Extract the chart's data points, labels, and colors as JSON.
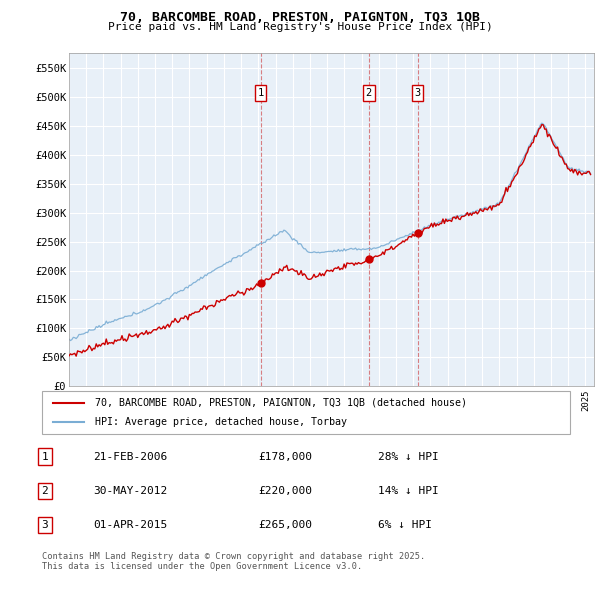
{
  "title_line1": "70, BARCOMBE ROAD, PRESTON, PAIGNTON, TQ3 1QB",
  "title_line2": "Price paid vs. HM Land Registry's House Price Index (HPI)",
  "xlim_start": 1995.0,
  "xlim_end": 2025.5,
  "ylim_min": 0,
  "ylim_max": 575000,
  "yticks": [
    0,
    50000,
    100000,
    150000,
    200000,
    250000,
    300000,
    350000,
    400000,
    450000,
    500000,
    550000
  ],
  "ytick_labels": [
    "£0",
    "£50K",
    "£100K",
    "£150K",
    "£200K",
    "£250K",
    "£300K",
    "£350K",
    "£400K",
    "£450K",
    "£500K",
    "£550K"
  ],
  "sales": [
    {
      "date": 2006.13,
      "price": 178000,
      "label": "1"
    },
    {
      "date": 2012.42,
      "price": 220000,
      "label": "2"
    },
    {
      "date": 2015.25,
      "price": 265000,
      "label": "3"
    }
  ],
  "vline_dates": [
    2006.13,
    2012.42,
    2015.25
  ],
  "sale_color": "#cc0000",
  "hpi_color": "#7aadd4",
  "chart_bg": "#e8f0f8",
  "table_rows": [
    {
      "num": "1",
      "date": "21-FEB-2006",
      "price": "£178,000",
      "pct": "28% ↓ HPI"
    },
    {
      "num": "2",
      "date": "30-MAY-2012",
      "price": "£220,000",
      "pct": "14% ↓ HPI"
    },
    {
      "num": "3",
      "date": "01-APR-2015",
      "price": "£265,000",
      "pct": "6% ↓ HPI"
    }
  ],
  "footer": "Contains HM Land Registry data © Crown copyright and database right 2025.\nThis data is licensed under the Open Government Licence v3.0.",
  "legend_label_red": "70, BARCOMBE ROAD, PRESTON, PAIGNTON, TQ3 1QB (detached house)",
  "legend_label_blue": "HPI: Average price, detached house, Torbay"
}
